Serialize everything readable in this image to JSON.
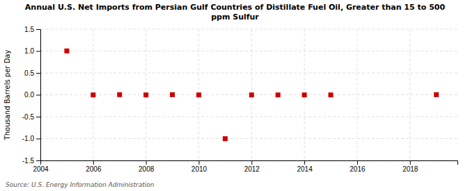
{
  "chart_data": {
    "type": "scatter",
    "title": "Annual U.S. Net Imports from Persian Gulf Countries of Distillate Fuel Oil, Greater than 15 to 500\nppm Sulfur",
    "y_label": "Thousand Barrels per Day",
    "source": "Source: U.S. Energy Information Administration",
    "x": [
      2005,
      2006,
      2007,
      2008,
      2009,
      2010,
      2011,
      2012,
      2013,
      2014,
      2015,
      2019
    ],
    "values": [
      1.003,
      -0.003,
      0.003,
      -0.003,
      0.003,
      -0.003,
      -1.003,
      -0.003,
      -0.003,
      -0.003,
      -0.003,
      0.003
    ],
    "color": "#cc0000",
    "marker": "square",
    "xlim": [
      2004,
      2019.8
    ],
    "ylim": [
      -1.5,
      1.5
    ],
    "xticks": [
      2004,
      2006,
      2008,
      2010,
      2012,
      2014,
      2016,
      2018
    ],
    "yticks": [
      -1.5,
      {
        "value": -1.0,
        "label": "-1.0"
      },
      -0.5,
      {
        "value": 0.0,
        "label": "0.0"
      },
      0.5,
      {
        "value": 1.0,
        "label": "1.0"
      },
      1.5
    ],
    "grid": true
  }
}
